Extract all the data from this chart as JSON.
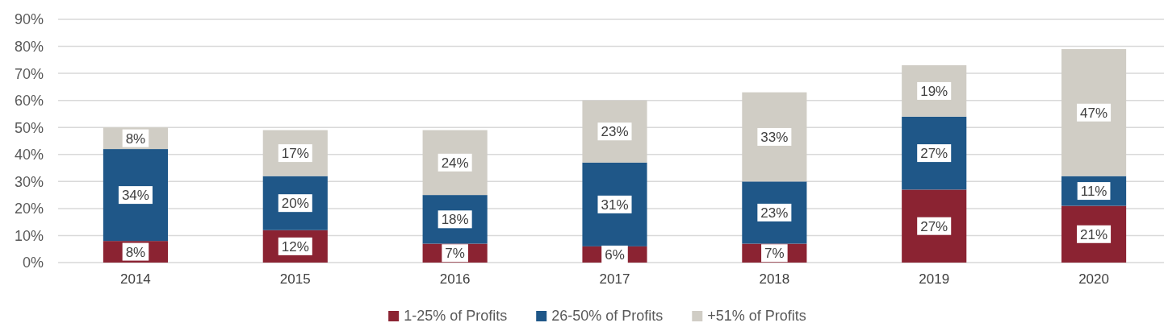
{
  "chart_data": {
    "type": "bar",
    "stacked": true,
    "categories": [
      "2014",
      "2015",
      "2016",
      "2017",
      "2018",
      "2019",
      "2020"
    ],
    "series": [
      {
        "name": "1-25% of Profits",
        "color": "#8b2332",
        "values": [
          8,
          12,
          7,
          6,
          7,
          27,
          21
        ],
        "value_labels": [
          "8%",
          "12%",
          "7%",
          "6%",
          "7%",
          "27%",
          "21%"
        ]
      },
      {
        "name": "26-50% of Profits",
        "color": "#1f5788",
        "values": [
          34,
          20,
          18,
          31,
          23,
          27,
          11
        ],
        "value_labels": [
          "34%",
          "20%",
          "18%",
          "31%",
          "23%",
          "27%",
          "11%"
        ]
      },
      {
        "name": "+51% of Profits",
        "color": "#d0cdc5",
        "values": [
          8,
          17,
          24,
          23,
          33,
          19,
          47
        ],
        "value_labels": [
          "8%",
          "17%",
          "24%",
          "23%",
          "33%",
          "19%",
          "47%"
        ]
      }
    ],
    "ylim": [
      0,
      90
    ],
    "yticks": [
      {
        "value": 0,
        "label": "0%"
      },
      {
        "value": 10,
        "label": "10%"
      },
      {
        "value": 20,
        "label": "20%"
      },
      {
        "value": 30,
        "label": "30%"
      },
      {
        "value": 40,
        "label": "40%"
      },
      {
        "value": 50,
        "label": "50%"
      },
      {
        "value": 60,
        "label": "60%"
      },
      {
        "value": 70,
        "label": "70%"
      },
      {
        "value": 80,
        "label": "80%"
      },
      {
        "value": 90,
        "label": "90%"
      }
    ],
    "grid": "y",
    "legend": "bottom"
  }
}
